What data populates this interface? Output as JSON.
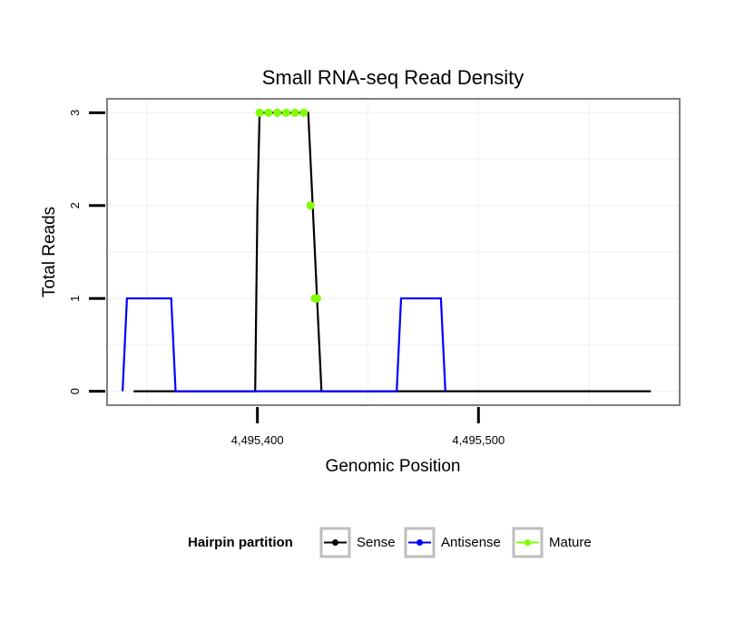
{
  "chart_data": {
    "type": "line",
    "title": "Small RNA-seq Read Density",
    "xlabel": "Genomic Position",
    "ylabel": "Total Reads",
    "xlim": [
      4495332,
      4495591
    ],
    "ylim": [
      -0.15,
      3.15
    ],
    "x_ticks": [
      {
        "value": 4495400,
        "label": "4,495,400"
      },
      {
        "value": 4495500,
        "label": "4,495,500"
      }
    ],
    "y_ticks": [
      {
        "value": 0,
        "label": "0"
      },
      {
        "value": 1,
        "label": "1"
      },
      {
        "value": 2,
        "label": "2"
      },
      {
        "value": 3,
        "label": "3"
      }
    ],
    "grid": true,
    "legend": {
      "title": "Hairpin partition",
      "position": "bottom"
    },
    "series": [
      {
        "name": "Sense",
        "color": "#000000",
        "style": "line",
        "points": [
          [
            4495344,
            0
          ],
          [
            4495399,
            0
          ],
          [
            4495400,
            2
          ],
          [
            4495401,
            3
          ],
          [
            4495423,
            3
          ],
          [
            4495425,
            2
          ],
          [
            4495427,
            1
          ],
          [
            4495429,
            0
          ],
          [
            4495578,
            0
          ]
        ]
      },
      {
        "name": "Antisense",
        "color": "#0000ff",
        "style": "line",
        "points": [
          [
            4495339,
            0
          ],
          [
            4495341,
            1
          ],
          [
            4495361,
            1
          ],
          [
            4495363,
            0
          ],
          [
            4495399,
            0
          ],
          [
            4495428,
            0
          ],
          [
            4495463,
            0
          ],
          [
            4495465,
            1
          ],
          [
            4495483,
            1
          ],
          [
            4495485,
            0
          ]
        ]
      },
      {
        "name": "Mature",
        "color": "#7fff00",
        "style": "points",
        "points": [
          [
            4495401,
            3
          ],
          [
            4495405,
            3
          ],
          [
            4495409,
            3
          ],
          [
            4495413,
            3
          ],
          [
            4495417,
            3
          ],
          [
            4495421,
            3
          ],
          [
            4495424,
            2
          ],
          [
            4495426,
            1
          ],
          [
            4495427,
            1
          ]
        ]
      }
    ]
  }
}
